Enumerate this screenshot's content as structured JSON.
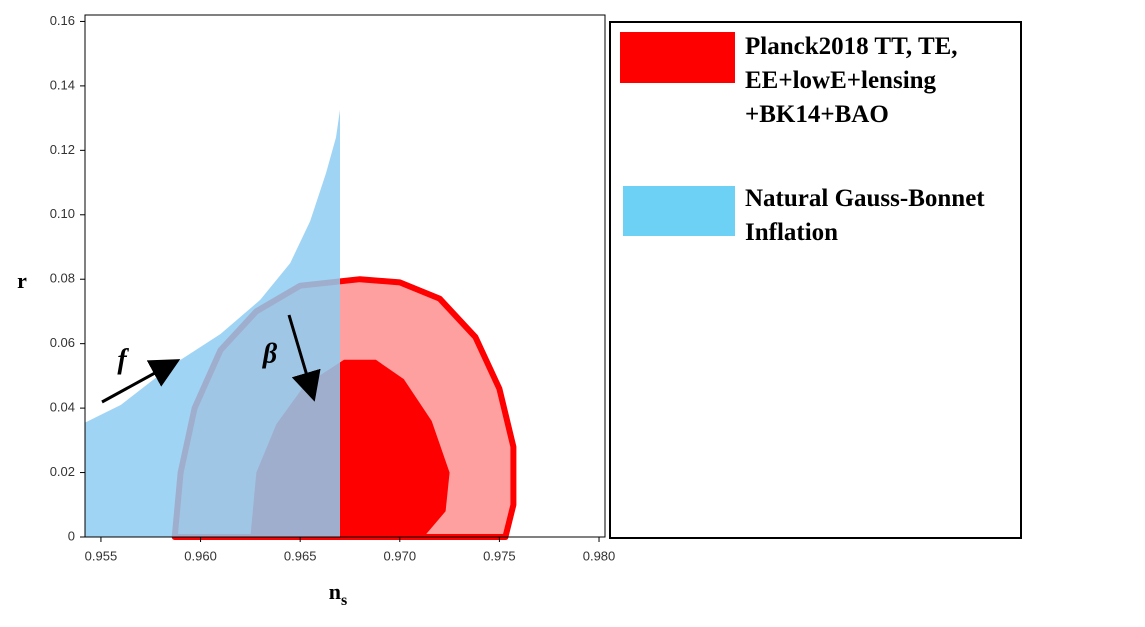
{
  "chart_data": {
    "type": "contour",
    "x_label": {
      "main": "n",
      "sub": "s"
    },
    "y_label": "r",
    "xlim": [
      0.9542,
      0.9803
    ],
    "ylim": [
      0,
      0.162
    ],
    "xticks": [
      0.955,
      {
        "value": 0.96,
        "label": "0.960"
      },
      0.965,
      {
        "value": 0.97,
        "label": "0.970"
      },
      0.975,
      {
        "value": 0.98,
        "label": "0.980"
      }
    ],
    "yticks": [
      0,
      0.02,
      0.04,
      0.06,
      {
        "value": 0.08,
        "label": "0.08"
      },
      {
        "value": 0.1,
        "label": "0.10"
      },
      0.12,
      0.14,
      0.16
    ],
    "series": [
      {
        "name": "Planck2018 TT, TE, EE+lowE+lensing +BK14+BAO",
        "color": "#ff0000",
        "regions": [
          {
            "fill": "#ffa0a0",
            "stroke": "#ff0000",
            "x": [
              0.9587,
              0.959,
              0.9597,
              0.961,
              0.9628,
              0.965,
              0.968,
              0.97,
              0.972,
              0.9738,
              0.975,
              0.9757,
              0.9757,
              0.9753
            ],
            "y": [
              0,
              0.02,
              0.04,
              0.058,
              0.07,
              0.078,
              0.08,
              0.079,
              0.074,
              0.062,
              0.046,
              0.028,
              0.01,
              0
            ]
          },
          {
            "fill": "#ff0000",
            "x": [
              0.9625,
              0.9628,
              0.9638,
              0.9652,
              0.9672,
              0.9688,
              0.9702,
              0.9716,
              0.9725,
              0.9723,
              0.9712
            ],
            "y": [
              0,
              0.02,
              0.035,
              0.047,
              0.055,
              0.055,
              0.049,
              0.036,
              0.02,
              0.008,
              0
            ]
          }
        ]
      },
      {
        "name": "Natural Gauss-Bonnet Inflation",
        "color": "#6dd0f5",
        "regions": [
          {
            "fill": "#8fcdf2",
            "x": [
              0.9542,
              0.9542,
              0.956,
              0.9585,
              0.961,
              0.963,
              0.9645,
              0.9655,
              0.9663,
              0.9668,
              0.967,
              0.967
            ],
            "y": [
              0,
              0.0355,
              0.041,
              0.053,
              0.063,
              0.0736,
              0.085,
              0.098,
              0.113,
              0.124,
              0.1326,
              0
            ]
          }
        ]
      }
    ],
    "annotations": [
      "f",
      "β"
    ]
  }
}
